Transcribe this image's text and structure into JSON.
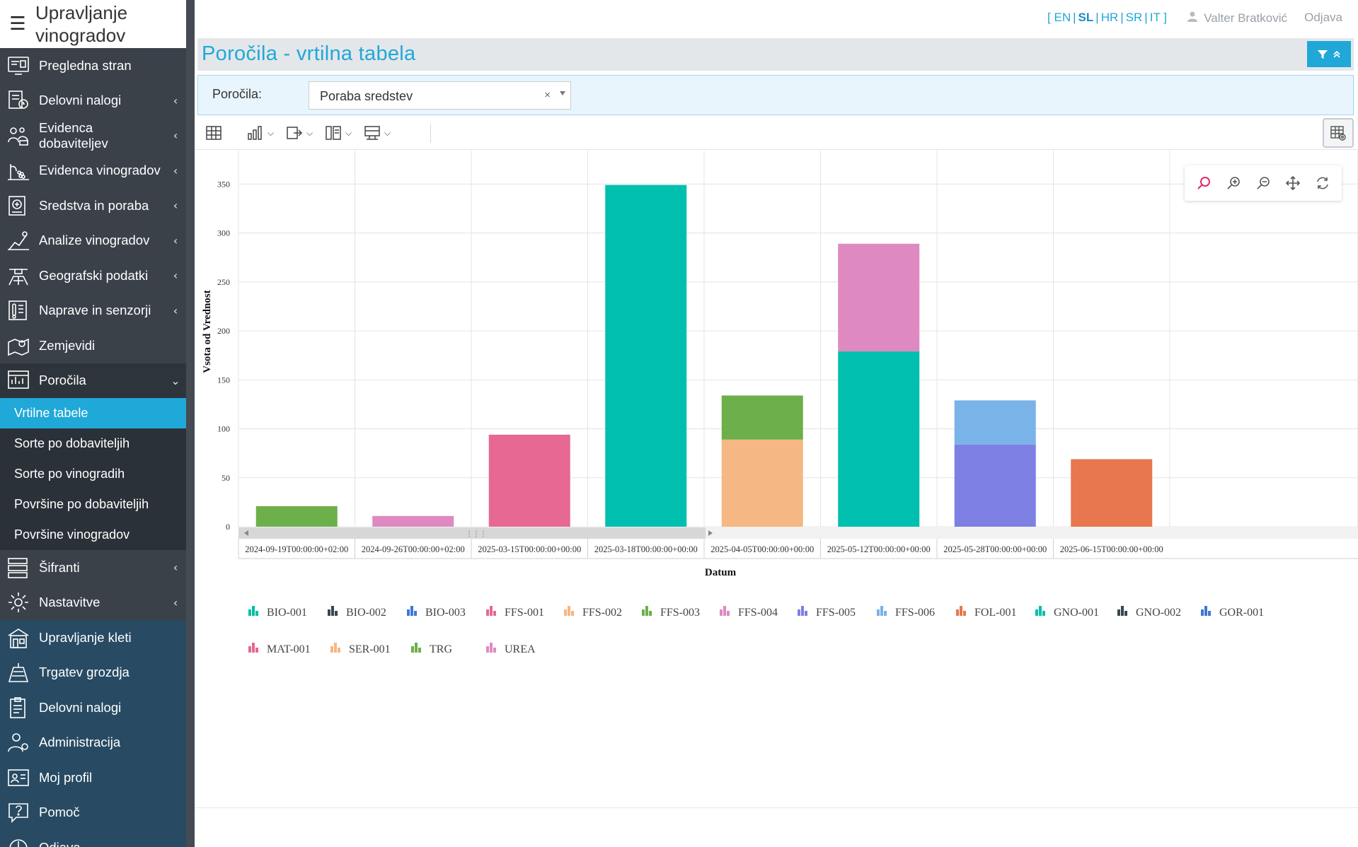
{
  "app": {
    "title": "Upravljanje vinogradov",
    "hamburger": "☰"
  },
  "sidebar": {
    "items": [
      {
        "label": "Pregledna stran",
        "chevron": ""
      },
      {
        "label": "Delovni nalogi",
        "chevron": "‹"
      },
      {
        "label": "Evidenca dobaviteljev",
        "chevron": "‹"
      },
      {
        "label": "Evidenca vinogradov",
        "chevron": "‹"
      },
      {
        "label": "Sredstva in poraba",
        "chevron": "‹"
      },
      {
        "label": "Analize vinogradov",
        "chevron": "‹"
      },
      {
        "label": "Geografski podatki",
        "chevron": "‹"
      },
      {
        "label": "Naprave in senzorji",
        "chevron": "‹"
      },
      {
        "label": "Zemjevidi",
        "chevron": ""
      },
      {
        "label": "Poročila",
        "chevron": "⌄"
      }
    ],
    "sub_items": [
      {
        "label": "Vrtilne tabele"
      },
      {
        "label": "Sorte po dobaviteljih"
      },
      {
        "label": "Sorte po vinogradih"
      },
      {
        "label": "Površine po dobaviteljih"
      },
      {
        "label": "Površine vinogradov"
      }
    ],
    "items2": [
      {
        "label": "Šifranti",
        "chevron": "‹"
      },
      {
        "label": "Nastavitve",
        "chevron": "‹"
      }
    ],
    "cellar_items": [
      {
        "label": "Upravljanje kleti"
      },
      {
        "label": "Trgatev grozdja"
      },
      {
        "label": "Delovni nalogi"
      },
      {
        "label": "Administracija"
      },
      {
        "label": "Moj profil"
      },
      {
        "label": "Pomoč"
      },
      {
        "label": "Odjava"
      }
    ]
  },
  "topbar": {
    "bracket_open": "[",
    "bracket_close": "]",
    "langs": [
      "EN",
      "SL",
      "HR",
      "SR",
      "IT"
    ],
    "selected_lang": "SL",
    "user_name": "Valter Bratković",
    "logout": "Odjava"
  },
  "page": {
    "title": "Poročila - vrtilna tabela"
  },
  "filter": {
    "label": "Poročila:",
    "selected": "Poraba sredstev",
    "clear": "×"
  },
  "colors": {
    "accent": "#20a8d8",
    "sidebar": "#3a4149",
    "cellar": "#284b63"
  },
  "chart_data": {
    "type": "bar",
    "stacked": true,
    "xlabel": "Datum",
    "ylabel": "Vsota od Vrednost",
    "ylim": [
      0,
      400
    ],
    "yticks": [
      0,
      50,
      100,
      150,
      200,
      250,
      300,
      350,
      400
    ],
    "grid": true,
    "legend_position": "bottom",
    "categories": [
      "2024-09-19T00:00:00+02:00",
      "2024-09-26T00:00:00+02:00",
      "2025-03-15T00:00:00+00:00",
      "2025-03-18T00:00:00+00:00",
      "2025-04-05T00:00:00+00:00",
      "2025-05-12T00:00:00+00:00",
      "2025-05-28T00:00:00+00:00",
      "2025-06-15T00:00:00+00:00"
    ],
    "series": [
      {
        "name": "BIO-001",
        "color": "#00bfa5",
        "values": [
          0,
          0,
          0,
          0,
          0,
          0,
          0,
          0
        ]
      },
      {
        "name": "BIO-002",
        "color": "#37474f",
        "values": [
          0,
          0,
          0,
          0,
          0,
          0,
          0,
          0
        ]
      },
      {
        "name": "BIO-003",
        "color": "#3c78d8",
        "values": [
          0,
          0,
          0,
          0,
          0,
          0,
          0,
          0
        ]
      },
      {
        "name": "FFS-001",
        "color": "#e66893",
        "values": [
          0,
          0,
          94,
          0,
          0,
          0,
          0,
          0
        ]
      },
      {
        "name": "FFS-002",
        "color": "#f5b783",
        "values": [
          0,
          0,
          0,
          0,
          89,
          0,
          0,
          0
        ]
      },
      {
        "name": "FFS-003",
        "color": "#6daf4b",
        "values": [
          21,
          0,
          0,
          0,
          0,
          0,
          0,
          0
        ]
      },
      {
        "name": "FFS-004",
        "color": "#de8ac1",
        "values": [
          0,
          11,
          0,
          0,
          0,
          0,
          0,
          0
        ]
      },
      {
        "name": "FFS-005",
        "color": "#7e80e3",
        "values": [
          0,
          0,
          0,
          0,
          0,
          0,
          84,
          0
        ]
      },
      {
        "name": "FFS-006",
        "color": "#79b3e8",
        "values": [
          0,
          0,
          0,
          0,
          0,
          0,
          45,
          0
        ]
      },
      {
        "name": "FOL-001",
        "color": "#e8764f",
        "values": [
          0,
          0,
          0,
          0,
          0,
          0,
          0,
          69
        ]
      },
      {
        "name": "GNO-001",
        "color": "#00bfaf",
        "values": [
          0,
          0,
          0,
          349,
          0,
          179,
          0,
          0
        ]
      },
      {
        "name": "GNO-002",
        "color": "#37474f",
        "values": [
          0,
          0,
          0,
          0,
          0,
          0,
          0,
          0
        ]
      },
      {
        "name": "GOR-001",
        "color": "#3c78d8",
        "values": [
          0,
          0,
          0,
          0,
          0,
          0,
          0,
          0
        ]
      },
      {
        "name": "MAT-001",
        "color": "#e66893",
        "values": [
          0,
          0,
          0,
          0,
          0,
          0,
          0,
          0
        ]
      },
      {
        "name": "SER-001",
        "color": "#f5b783",
        "values": [
          0,
          0,
          0,
          0,
          0,
          0,
          0,
          0
        ]
      },
      {
        "name": "TRG",
        "color": "#6daf4b",
        "values": [
          0,
          0,
          0,
          0,
          45,
          0,
          0,
          0
        ]
      },
      {
        "name": "UREA",
        "color": "#de8ac1",
        "values": [
          0,
          0,
          0,
          0,
          0,
          110,
          0,
          0
        ]
      }
    ]
  }
}
